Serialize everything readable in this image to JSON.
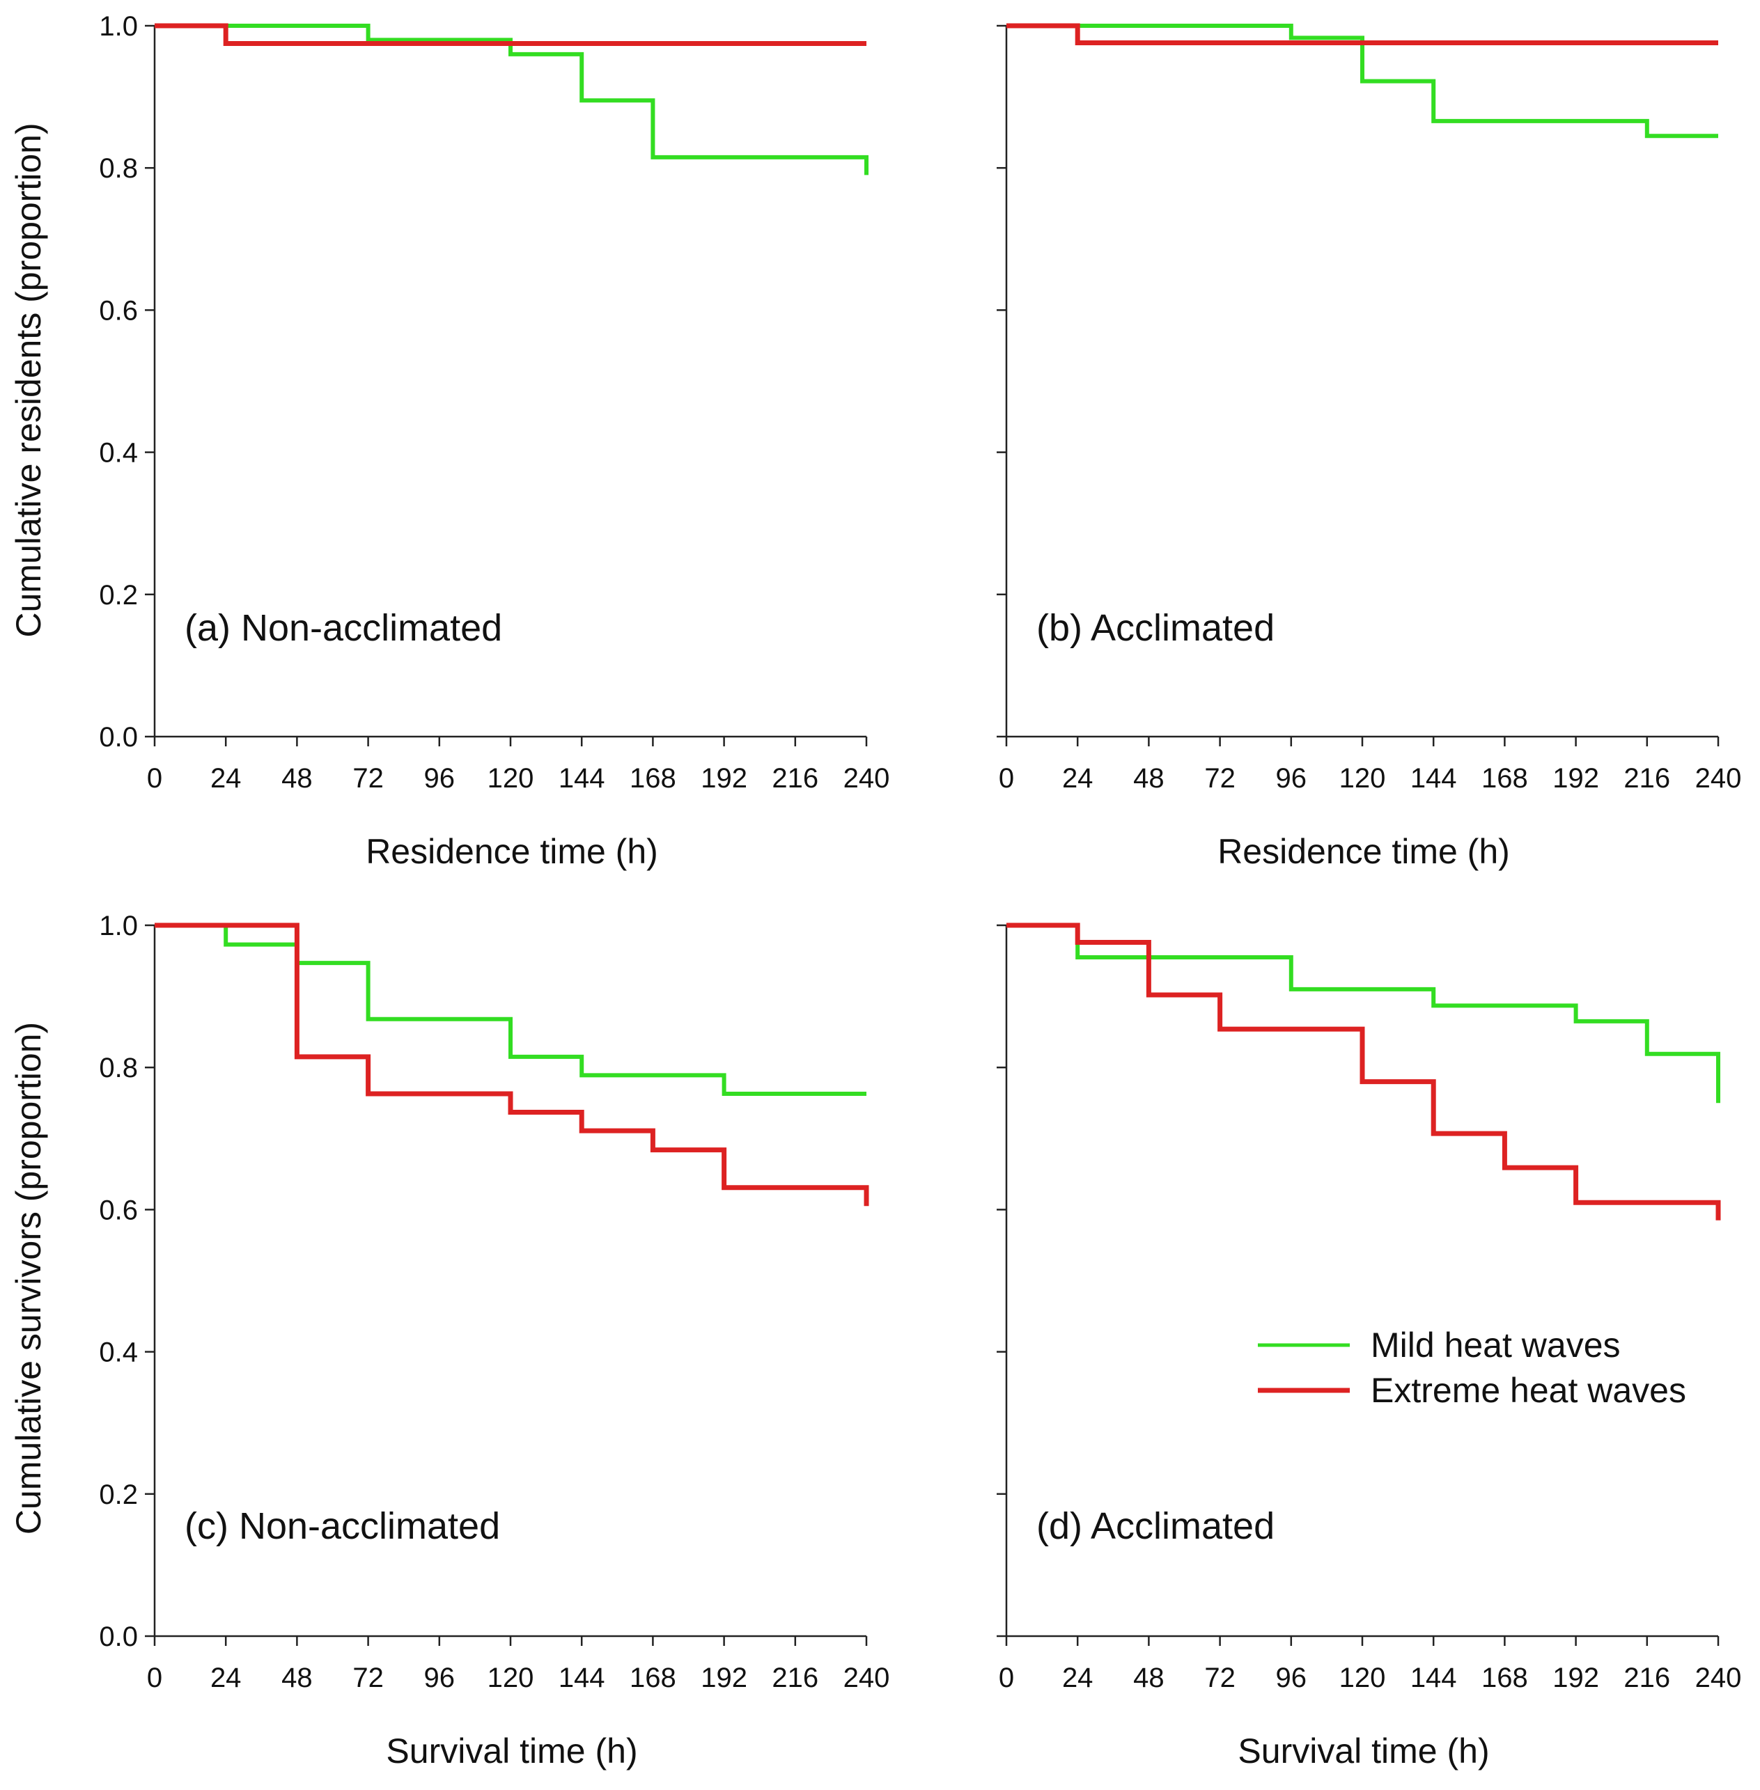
{
  "chart_data": [
    {
      "id": "a",
      "type": "line",
      "step": true,
      "panel_label": "(a) Non-acclimated",
      "xlabel": "Residence time (h)",
      "ylabel": "Cumulative residents (proportion)",
      "xlim": [
        0,
        240
      ],
      "ylim": [
        0,
        1
      ],
      "xticks": [
        0,
        24,
        48,
        72,
        96,
        120,
        144,
        168,
        192,
        216,
        240
      ],
      "yticks": [
        "0.0",
        "0.2",
        "0.4",
        "0.6",
        "0.8",
        "1.0"
      ],
      "series": [
        {
          "name": "Mild heat waves",
          "color": "#33dd22",
          "x": [
            0,
            72,
            120,
            144,
            168,
            240,
            240
          ],
          "y": [
            1.0,
            0.98,
            0.96,
            0.895,
            0.815,
            0.815,
            0.79
          ]
        },
        {
          "name": "Extreme heat waves",
          "color": "#dd2222",
          "x": [
            0,
            24,
            240
          ],
          "y": [
            1.0,
            0.975,
            0.975
          ]
        }
      ]
    },
    {
      "id": "b",
      "type": "line",
      "step": true,
      "panel_label": "(b) Acclimated",
      "xlabel": "Residence time (h)",
      "ylabel": "",
      "xlim": [
        0,
        240
      ],
      "ylim": [
        0,
        1
      ],
      "xticks": [
        0,
        24,
        48,
        72,
        96,
        120,
        144,
        168,
        192,
        216,
        240
      ],
      "yticks": [
        "0.0",
        "0.2",
        "0.4",
        "0.6",
        "0.8",
        "1.0"
      ],
      "series": [
        {
          "name": "Mild heat waves",
          "color": "#33dd22",
          "x": [
            0,
            96,
            120,
            144,
            216,
            240
          ],
          "y": [
            1.0,
            0.983,
            0.922,
            0.866,
            0.845,
            0.845
          ]
        },
        {
          "name": "Extreme heat waves",
          "color": "#dd2222",
          "x": [
            0,
            24,
            240
          ],
          "y": [
            1.0,
            0.976,
            0.976
          ]
        }
      ]
    },
    {
      "id": "c",
      "type": "line",
      "step": true,
      "panel_label": "(c) Non-acclimated",
      "xlabel": "Survival time (h)",
      "ylabel": "Cumulative survivors (proportion)",
      "xlim": [
        0,
        240
      ],
      "ylim": [
        0,
        1
      ],
      "xticks": [
        0,
        24,
        48,
        72,
        96,
        120,
        144,
        168,
        192,
        216,
        240
      ],
      "yticks": [
        "0.0",
        "0.2",
        "0.4",
        "0.6",
        "0.8",
        "1.0"
      ],
      "series": [
        {
          "name": "Mild heat waves",
          "color": "#33dd22",
          "x": [
            0,
            24,
            48,
            72,
            120,
            144,
            192,
            240
          ],
          "y": [
            1.0,
            0.973,
            0.947,
            0.868,
            0.815,
            0.789,
            0.763,
            0.763
          ]
        },
        {
          "name": "Extreme heat waves",
          "color": "#dd2222",
          "x": [
            0,
            48,
            72,
            120,
            144,
            168,
            192,
            240,
            240
          ],
          "y": [
            1.0,
            0.815,
            0.763,
            0.737,
            0.711,
            0.684,
            0.631,
            0.631,
            0.605
          ]
        }
      ]
    },
    {
      "id": "d",
      "type": "line",
      "step": true,
      "panel_label": "(d) Acclimated",
      "xlabel": "Survival time (h)",
      "ylabel": "",
      "xlim": [
        0,
        240
      ],
      "ylim": [
        0,
        1
      ],
      "xticks": [
        0,
        24,
        48,
        72,
        96,
        120,
        144,
        168,
        192,
        216,
        240
      ],
      "yticks": [
        "0.0",
        "0.2",
        "0.4",
        "0.6",
        "0.8",
        "1.0"
      ],
      "series": [
        {
          "name": "Mild heat waves",
          "color": "#33dd22",
          "x": [
            0,
            24,
            96,
            144,
            192,
            216,
            240,
            240
          ],
          "y": [
            1.0,
            0.955,
            0.91,
            0.887,
            0.865,
            0.819,
            0.819,
            0.75
          ]
        },
        {
          "name": "Extreme heat waves",
          "color": "#dd2222",
          "x": [
            0,
            24,
            48,
            72,
            120,
            144,
            168,
            192,
            240,
            240
          ],
          "y": [
            1.0,
            0.976,
            0.902,
            0.854,
            0.78,
            0.707,
            0.659,
            0.61,
            0.61,
            0.585
          ]
        }
      ]
    }
  ],
  "legend": {
    "items": [
      {
        "label": "Mild heat waves",
        "color": "#33dd22"
      },
      {
        "label": "Extreme heat waves",
        "color": "#dd2222"
      }
    ]
  }
}
